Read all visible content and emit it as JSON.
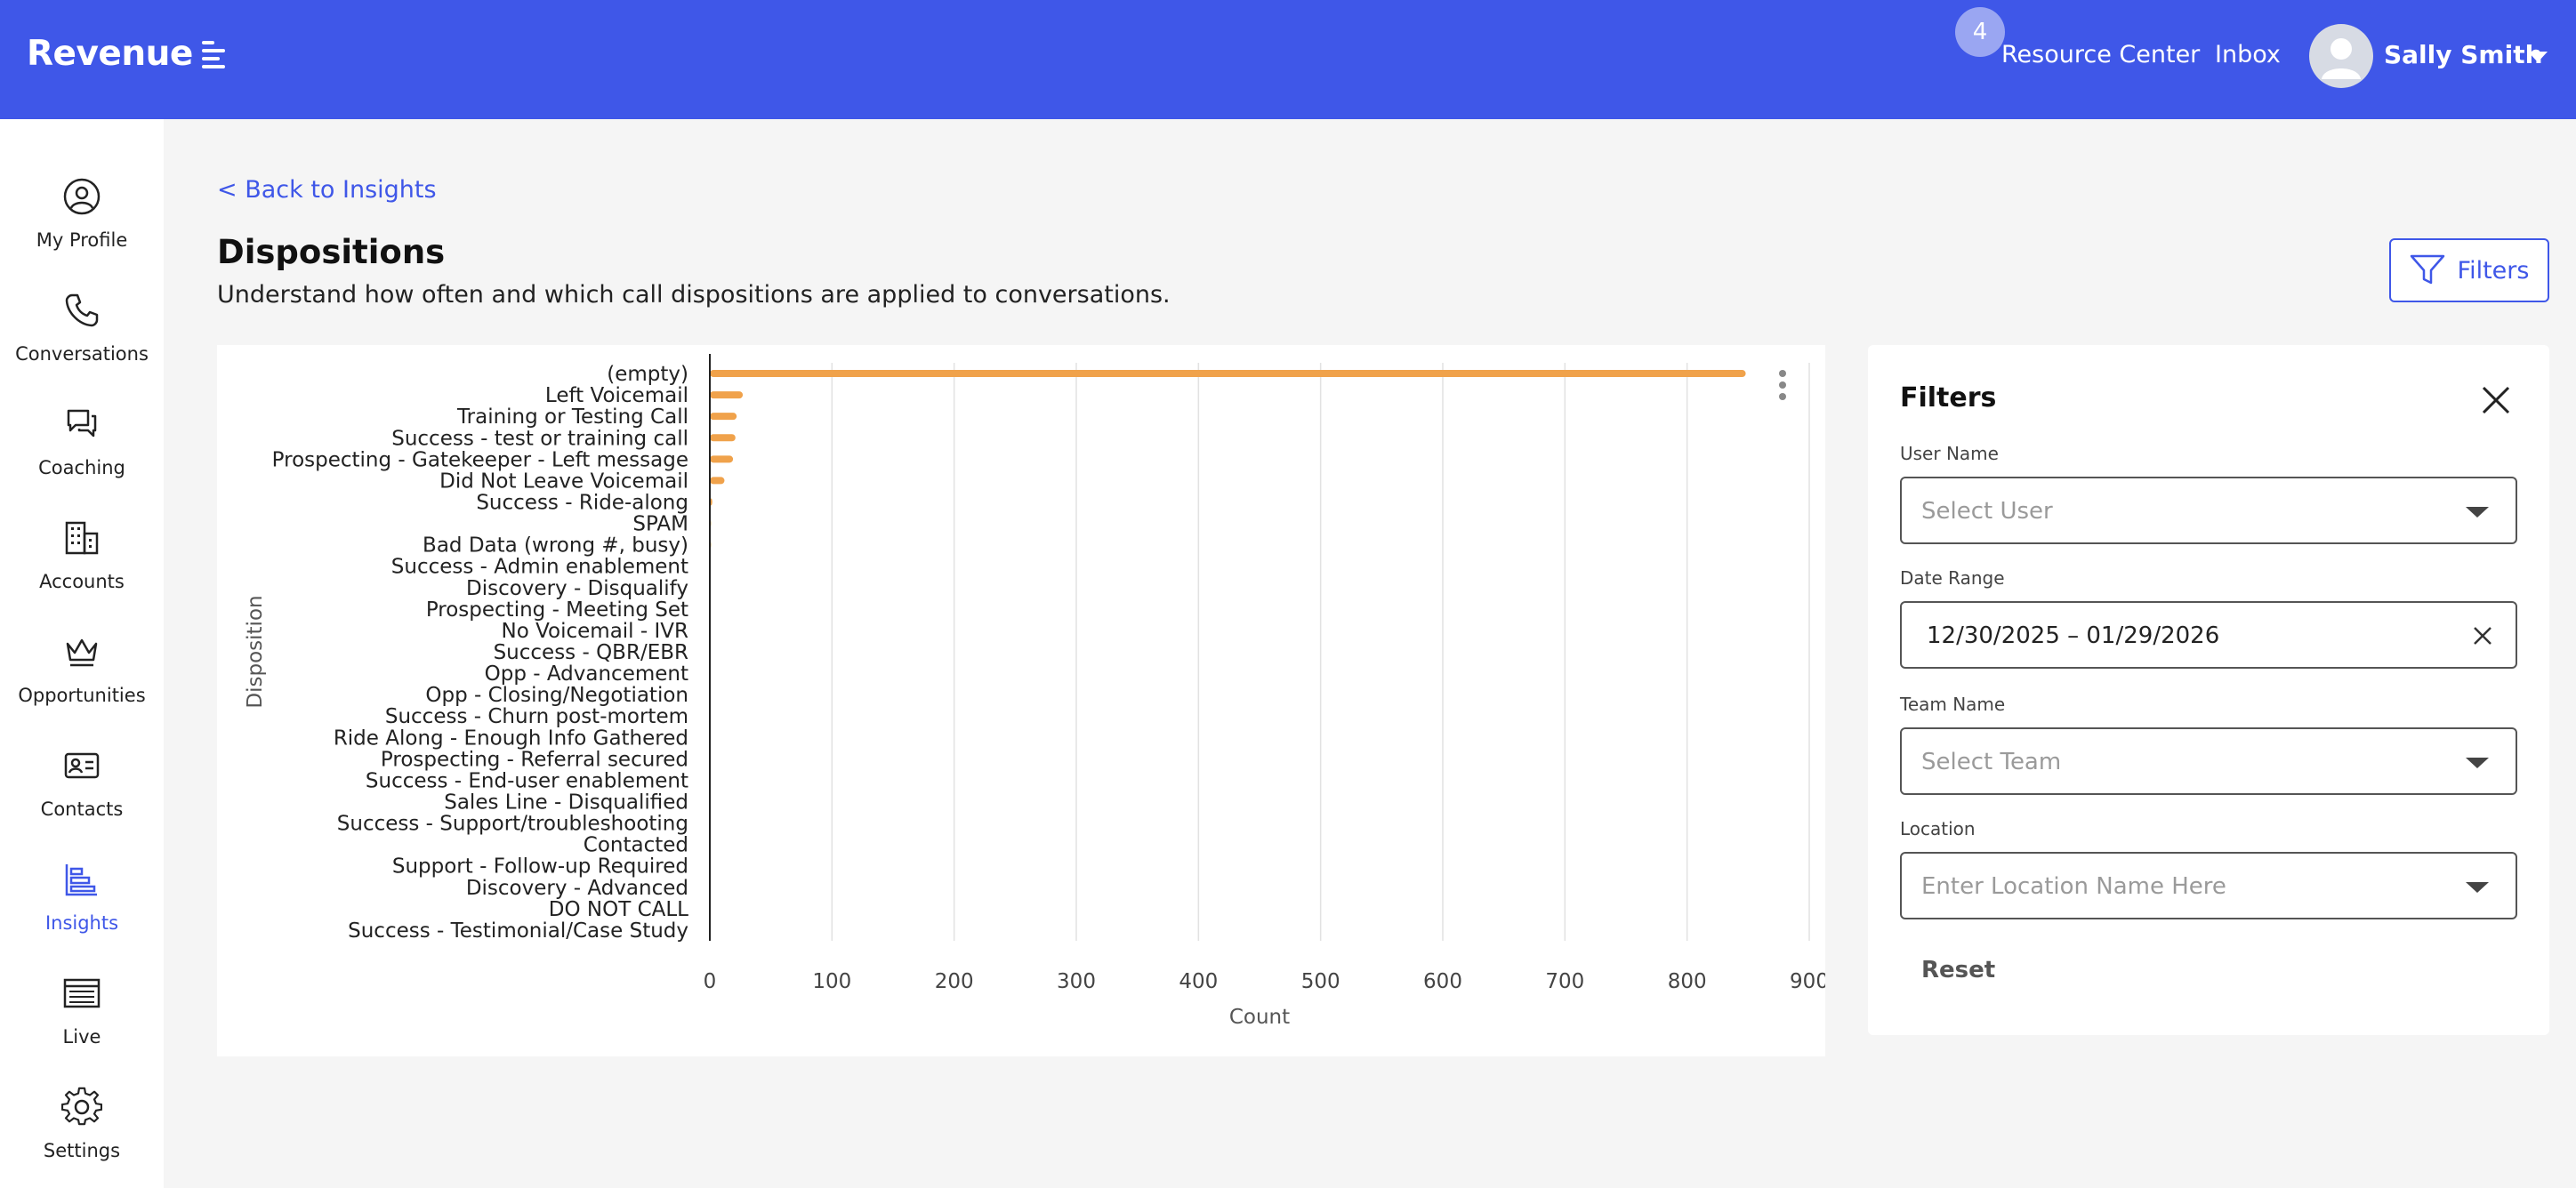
{
  "header": {
    "brand": "Revenue",
    "notification_count": "4",
    "resource_center_label": "Resource Center",
    "inbox_label": "Inbox",
    "user_name": "Sally Smith",
    "bar_color": "#3f57e8"
  },
  "sidebar": {
    "items": [
      {
        "label": "My Profile",
        "icon": "profile-icon",
        "active": false
      },
      {
        "label": "Conversations",
        "icon": "phone-icon",
        "active": false
      },
      {
        "label": "Coaching",
        "icon": "chat-bubbles-icon",
        "active": false
      },
      {
        "label": "Accounts",
        "icon": "buildings-icon",
        "active": false
      },
      {
        "label": "Opportunities",
        "icon": "crown-icon",
        "active": false
      },
      {
        "label": "Contacts",
        "icon": "contact-card-icon",
        "active": false
      },
      {
        "label": "Insights",
        "icon": "bar-chart-icon",
        "active": true
      },
      {
        "label": "Live",
        "icon": "live-list-icon",
        "active": false
      },
      {
        "label": "Settings",
        "icon": "gear-icon",
        "active": false
      }
    ]
  },
  "main": {
    "back_link": "< Back to Insights",
    "title": "Dispositions",
    "subtitle": "Understand how often and which call dispositions are applied to conversations.",
    "filters_button": "Filters"
  },
  "chart_data": {
    "type": "bar",
    "orientation": "horizontal",
    "categories": [
      "(empty)",
      "Left Voicemail",
      "Training or Testing Call",
      "Success - test or training call",
      "Prospecting - Gatekeeper - Left message",
      "Did Not Leave Voicemail",
      "Success - Ride-along",
      "SPAM",
      "Bad Data (wrong #, busy)",
      "Success - Admin enablement",
      "Discovery - Disqualify",
      "Prospecting - Meeting Set",
      "No Voicemail - IVR",
      "Success - QBR/EBR",
      "Opp - Advancement",
      "Opp - Closing/Negotiation",
      "Success - Churn post-mortem",
      "Ride Along - Enough Info Gathered",
      "Prospecting - Referral secured",
      "Success - End-user enablement",
      "Sales Line - Disqualified",
      "Success - Support/troubleshooting",
      "Contacted",
      "Support - Follow-up Required",
      "Discovery - Advanced",
      "DO NOT CALL",
      "Success - Testimonial/Case Study"
    ],
    "values": [
      848,
      27,
      22,
      21,
      19,
      12,
      2,
      1,
      1,
      0,
      0,
      0,
      0,
      0,
      0,
      0,
      0,
      0,
      0,
      0,
      0,
      0,
      0,
      0,
      0,
      0,
      0
    ],
    "xlabel": "Count",
    "ylabel": "Disposition",
    "xlim": [
      0,
      900
    ],
    "xticks": [
      0,
      100,
      200,
      300,
      400,
      500,
      600,
      700,
      800,
      900
    ],
    "grid": true,
    "bar_color": "#f0a24b"
  },
  "filters_panel": {
    "title": "Filters",
    "user_name_label": "User Name",
    "user_name_placeholder": "Select User",
    "date_range_label": "Date Range",
    "date_range_value": "12/30/2025 – 01/29/2026",
    "team_name_label": "Team Name",
    "team_name_placeholder": "Select Team",
    "location_label": "Location",
    "location_placeholder": "Enter Location Name Here",
    "reset_label": "Reset"
  }
}
